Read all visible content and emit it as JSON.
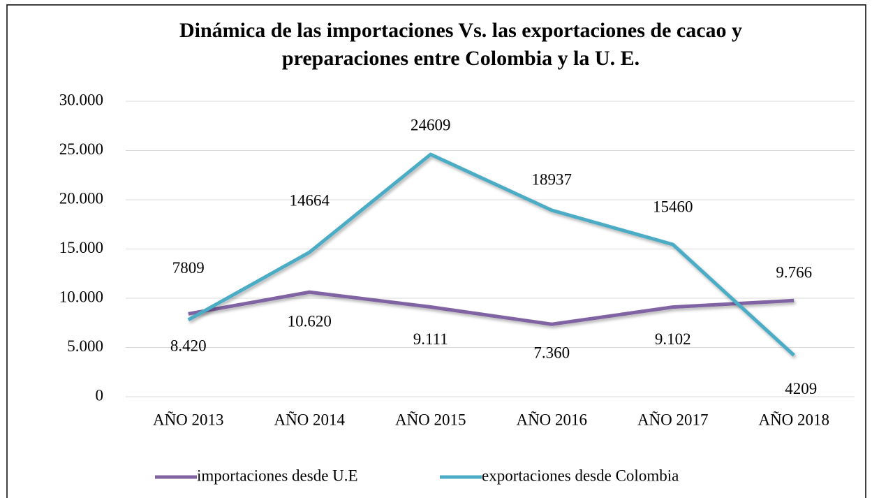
{
  "chart_data": {
    "type": "line",
    "title": [
      "Dinámica de las importaciones Vs. las exportaciones de cacao y",
      "preparaciones entre Colombia y la U. E."
    ],
    "categories": [
      "AÑO 2013",
      "AÑO 2014",
      "AÑO 2015",
      "AÑO 2016",
      "AÑO 2017",
      "AÑO 2018"
    ],
    "series": [
      {
        "name": "importaciones desde U.E",
        "color": "#8064a2",
        "values": [
          8420,
          10620,
          9111,
          7360,
          9102,
          9766
        ],
        "value_labels": [
          "8.420",
          "10.620",
          "9.111",
          "7.360",
          "9.102",
          "9.766"
        ]
      },
      {
        "name": "exportaciones desde Colombia",
        "color": "#4bacc6",
        "values": [
          7809,
          14664,
          24609,
          18937,
          15460,
          4209
        ]
      }
    ],
    "ylim": [
      0,
      30000
    ],
    "yticks": [
      0,
      {
        "value": 5000,
        "label": "5.000"
      },
      {
        "value": 10000,
        "label": "10.000"
      },
      {
        "value": 15000,
        "label": "15.000"
      },
      {
        "value": 20000,
        "label": "20.000"
      },
      {
        "value": 25000,
        "label": "25.000"
      },
      {
        "value": 30000,
        "label": "30.000"
      }
    ],
    "grid": true,
    "legend": "bottom"
  }
}
